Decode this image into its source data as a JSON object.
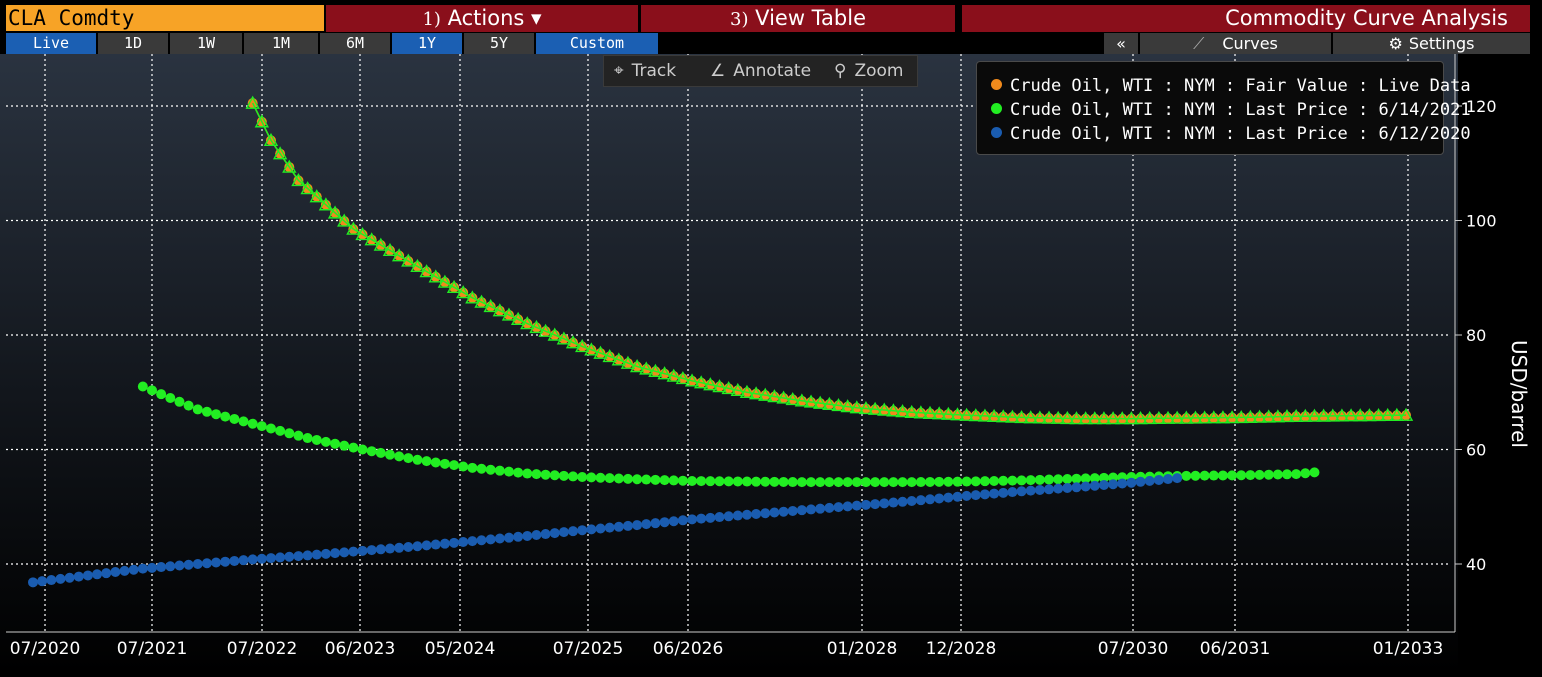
{
  "header": {
    "ticker": "CLA Comdty",
    "actions_num": "1)",
    "actions_label": "Actions ▾",
    "view_num": "3)",
    "view_label": "View Table",
    "title": "Commodity Curve Analysis"
  },
  "range_tabs": [
    {
      "label": "Live",
      "active": true
    },
    {
      "label": "1D",
      "active": false
    },
    {
      "label": "1W",
      "active": false
    },
    {
      "label": "1M",
      "active": false
    },
    {
      "label": "6M",
      "active": false
    },
    {
      "label": "1Y",
      "active": true
    },
    {
      "label": "5Y",
      "active": false
    },
    {
      "label": "Custom",
      "active": true
    }
  ],
  "right_controls": {
    "collapse": "«",
    "curves": "Curves",
    "settings": "Settings"
  },
  "chart_toolbar": {
    "track": "Track",
    "annotate": "Annotate",
    "zoom": "Zoom"
  },
  "colors": {
    "orange": "#f08a1c",
    "green": "#22ee22",
    "blue": "#1a5cb0",
    "grid": "#ffffff",
    "background_top": "#2a3340",
    "background_bottom": "#000000"
  },
  "chart_data": {
    "type": "line",
    "xlabel": "",
    "ylabel": "USD/barrel",
    "x_ticks": [
      "07/2020",
      "07/2021",
      "07/2022",
      "06/2023",
      "05/2024",
      "07/2025",
      "06/2026",
      "01/2028",
      "12/2028",
      "07/2030",
      "06/2031",
      "01/2033"
    ],
    "y_ticks": [
      40,
      60,
      80,
      100,
      120
    ],
    "ylim": [
      28,
      128
    ],
    "grid": true,
    "legend_position": "top-right",
    "series": [
      {
        "name": "Crude Oil, WTI : NYM : Fair Value : Live Data",
        "color": "orange",
        "marker": "circle",
        "points": [
          [
            "07/2022",
            120.5
          ],
          [
            "09/2022",
            114.0
          ],
          [
            "12/2022",
            107.0
          ],
          [
            "06/2023",
            98.5
          ],
          [
            "01/2024",
            92.0
          ],
          [
            "07/2024",
            86.5
          ],
          [
            "01/2025",
            82.0
          ],
          [
            "07/2025",
            78.0
          ],
          [
            "01/2026",
            74.5
          ],
          [
            "07/2026",
            72.0
          ],
          [
            "01/2027",
            70.0
          ],
          [
            "07/2027",
            68.5
          ],
          [
            "01/2028",
            67.3
          ],
          [
            "07/2028",
            66.5
          ],
          [
            "01/2029",
            66.0
          ],
          [
            "07/2029",
            65.6
          ],
          [
            "01/2030",
            65.4
          ],
          [
            "07/2030",
            65.4
          ],
          [
            "01/2031",
            65.5
          ],
          [
            "07/2031",
            65.6
          ],
          [
            "01/2032",
            65.8
          ],
          [
            "07/2032",
            65.9
          ],
          [
            "01/2033",
            66.0
          ]
        ]
      },
      {
        "name": "Crude Oil, WTI : NYM : Last Price : 6/14/2021",
        "color": "green",
        "marker": "triangle",
        "points": [
          [
            "07/2022",
            120.5
          ],
          [
            "09/2022",
            114.0
          ],
          [
            "12/2022",
            107.0
          ],
          [
            "06/2023",
            98.5
          ],
          [
            "01/2024",
            92.0
          ],
          [
            "07/2024",
            86.5
          ],
          [
            "01/2025",
            82.0
          ],
          [
            "07/2025",
            78.0
          ],
          [
            "01/2026",
            74.5
          ],
          [
            "07/2026",
            72.0
          ],
          [
            "01/2027",
            70.0
          ],
          [
            "07/2027",
            68.5
          ],
          [
            "01/2028",
            67.3
          ],
          [
            "07/2028",
            66.5
          ],
          [
            "01/2029",
            66.0
          ],
          [
            "07/2029",
            65.6
          ],
          [
            "01/2030",
            65.4
          ],
          [
            "07/2030",
            65.4
          ],
          [
            "01/2031",
            65.5
          ],
          [
            "07/2031",
            65.6
          ],
          [
            "01/2032",
            65.8
          ],
          [
            "07/2032",
            65.9
          ],
          [
            "01/2033",
            66.0
          ]
        ]
      },
      {
        "name": "Crude Oil, WTI : NYM : Last Price : 6/14/2021",
        "color": "green",
        "marker": "circle",
        "points": [
          [
            "07/2021",
            71.0
          ],
          [
            "01/2022",
            67.0
          ],
          [
            "07/2022",
            64.5
          ],
          [
            "01/2023",
            62.0
          ],
          [
            "07/2023",
            60.0
          ],
          [
            "01/2024",
            58.2
          ],
          [
            "07/2024",
            56.8
          ],
          [
            "01/2025",
            55.8
          ],
          [
            "07/2025",
            55.2
          ],
          [
            "01/2026",
            54.8
          ],
          [
            "07/2026",
            54.5
          ],
          [
            "01/2027",
            54.4
          ],
          [
            "07/2027",
            54.3
          ],
          [
            "01/2028",
            54.3
          ],
          [
            "07/2028",
            54.3
          ],
          [
            "01/2029",
            54.4
          ],
          [
            "07/2029",
            54.6
          ],
          [
            "01/2030",
            54.9
          ],
          [
            "07/2030",
            55.2
          ],
          [
            "01/2031",
            55.4
          ],
          [
            "07/2031",
            55.5
          ],
          [
            "01/2032",
            55.7
          ],
          [
            "03/2032",
            56.0
          ]
        ]
      },
      {
        "name": "Crude Oil, WTI : NYM : Last Price : 6/12/2020",
        "color": "blue",
        "marker": "circle",
        "points": [
          [
            "07/2020",
            36.8
          ],
          [
            "01/2021",
            38.0
          ],
          [
            "07/2021",
            39.2
          ],
          [
            "01/2022",
            40.0
          ],
          [
            "07/2022",
            40.8
          ],
          [
            "01/2023",
            41.5
          ],
          [
            "07/2023",
            42.3
          ],
          [
            "01/2024",
            43.1
          ],
          [
            "07/2024",
            44.0
          ],
          [
            "01/2025",
            44.9
          ],
          [
            "07/2025",
            45.9
          ],
          [
            "01/2026",
            46.8
          ],
          [
            "07/2026",
            47.8
          ],
          [
            "01/2027",
            48.6
          ],
          [
            "07/2027",
            49.4
          ],
          [
            "01/2028",
            50.2
          ],
          [
            "07/2028",
            51.0
          ],
          [
            "01/2029",
            51.9
          ],
          [
            "07/2029",
            52.7
          ],
          [
            "01/2030",
            53.4
          ],
          [
            "07/2030",
            54.2
          ],
          [
            "12/2030",
            55.0
          ]
        ]
      }
    ]
  }
}
